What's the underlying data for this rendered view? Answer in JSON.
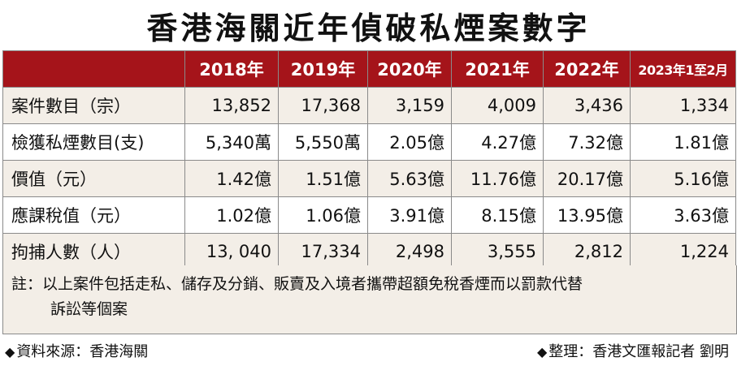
{
  "title": "香港海關近年偵破私煙案數字",
  "table": {
    "headers": [
      "2018年",
      "2019年",
      "2020年",
      "2021年",
      "2022年",
      "2023年1至2月"
    ],
    "rows": [
      {
        "label": "案件數目（宗）",
        "values": [
          "13,852",
          "17,368",
          "3,159",
          "4,009",
          "3,436",
          "1,334"
        ]
      },
      {
        "label": "檢獲私煙數目(支)",
        "values": [
          "5,340萬",
          "5,550萬",
          "2.05億",
          "4.27億",
          "7.32億",
          "1.81億"
        ]
      },
      {
        "label": "價值（元）",
        "values": [
          "1.42億",
          "1.51億",
          "5.63億",
          "11.76億",
          "20.17億",
          "5.16億"
        ]
      },
      {
        "label": "應課稅值（元）",
        "values": [
          "1.02億",
          "1.06億",
          "3.91億",
          "8.15億",
          "13.95億",
          "3.63億"
        ]
      },
      {
        "label": "拘捕人數（人）",
        "values": [
          "13, 040",
          "17,334",
          "2,498",
          "3,555",
          "2,812",
          "1,224"
        ]
      }
    ]
  },
  "note": {
    "line1": "註：以上案件包括走私、儲存及分銷、販賣及入境者攜帶超額免稅香煙而以罰款代替",
    "line2": "訴訟等個案"
  },
  "footer": {
    "source": "資料來源：香港海關",
    "credit": "整理：香港文匯報記者 劉明",
    "marker": "◆"
  },
  "colors": {
    "header_bg": "#a5141a",
    "row_shade": "#f3eee7"
  }
}
